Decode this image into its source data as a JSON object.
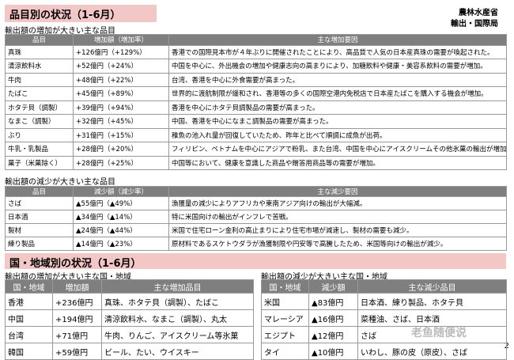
{
  "header": {
    "title": "品目別の状況（1-6月）",
    "org": "農林水産省",
    "bureau": "輸出・国際局"
  },
  "increase_items": {
    "title": "輸出額の増加が大きい主な品目",
    "columns": [
      "品目",
      "増加額（増加率）",
      "主な増加要因"
    ],
    "rows": [
      [
        "真珠",
        "+126億円（+129%）",
        "香港での国際見本市が４年ぶりに開催されたことにより、高品質で人気の日本産真珠の需要が喚起された。"
      ],
      [
        "清涼飲料水",
        "+52億円（+24%）",
        "中国を中心に、外出機会の増加や健康志向の高まりにより、加糖飲料や健康・美容系飲料の需要が増加。"
      ],
      [
        "牛肉",
        "+48億円（+22%）",
        "台湾、香港を中心に外食需要が高まった。"
      ],
      [
        "たばこ",
        "+45億円（+89%）",
        "世界的に渡航制限が緩和され、香港等の多くの国際空港内免税店で日本産たばこを購入する機会が増加。"
      ],
      [
        "ホタテ貝（調製）",
        "+39億円（+94%）",
        "香港を中心にホタテ貝調製品の需要が高まった。"
      ],
      [
        "なまこ（調製）",
        "+32億円（+45%）",
        "中国、香港を中心になまこ調製品の需要が高まった。"
      ],
      [
        "ぶり",
        "+31億円（+15%）",
        "稚魚の池入れ量が回復していたため、昨年と比べて順調に成魚が出荷。"
      ],
      [
        "牛乳・乳製品",
        "+28億円（+20%）",
        "フィリピン、ベトナムを中心にアジアで粉乳、また台湾、中国を中心にアイスクリームその他氷菓の輸出が増加。"
      ],
      [
        "菓子（米菓除く）",
        "+28億円（+25%）",
        "中国等において、健康を意識した商品や贈答用商品等の需要が増加。"
      ]
    ]
  },
  "decrease_items": {
    "title": "輸出額の減少が大きい主な品目",
    "columns": [
      "品目",
      "減少額（減少率）",
      "主な減少要因"
    ],
    "rows": [
      [
        "さば",
        "▲55億円（▲49%）",
        "漁獲量の減少によりアフリカや東南アジア向けの輸出が大幅減。"
      ],
      [
        "日本酒",
        "▲34億円（▲14%）",
        "特に米国向けの輸出がインフレで苦戦。"
      ],
      [
        "製材",
        "▲24億円（▲44%）",
        "米国で住宅ローン金利の高止まりにより住宅市場が減速し、製材の需要も減少。"
      ],
      [
        "練り製品",
        "▲14億円（▲23%）",
        "原材料であるスケトウダラが漁獲制限や円安等で高騰したため、米国等向けの輸出が減少。"
      ]
    ]
  },
  "region_header": "国・地域別の状況（1-6月）",
  "increase_regions": {
    "title": "輸出額の増加が大きい主な国・地域",
    "columns": [
      "国・地域",
      "増加額",
      "主な増加品目"
    ],
    "rows": [
      [
        "香港",
        "+236億円",
        "真珠、ホタテ貝（調製）、たばこ"
      ],
      [
        "中国",
        "+194億円",
        "清涼飲料水、なまこ（調製）、丸太"
      ],
      [
        "台湾",
        "+71億円",
        "牛肉、りんご、アイスクリーム等氷菓"
      ],
      [
        "韓国",
        "+59億円",
        "ビール、たい、ウイスキー"
      ]
    ]
  },
  "decrease_regions": {
    "title": "輸出額の減少が大きい主な国・地域",
    "columns": [
      "国・地域",
      "減少額",
      "主な減少品目"
    ],
    "rows": [
      [
        "米国",
        "▲83億円",
        "日本酒、練り製品、ホタテ貝"
      ],
      [
        "マレーシア",
        "▲16億円",
        "菜種油、さば、日本酒"
      ],
      [
        "エジプト",
        "▲12億円",
        "さば"
      ],
      [
        "タイ",
        "▲10億円",
        "いわし、豚の皮（原皮）、さば"
      ]
    ]
  },
  "watermark": "老鱼随便说",
  "page_number": "2"
}
